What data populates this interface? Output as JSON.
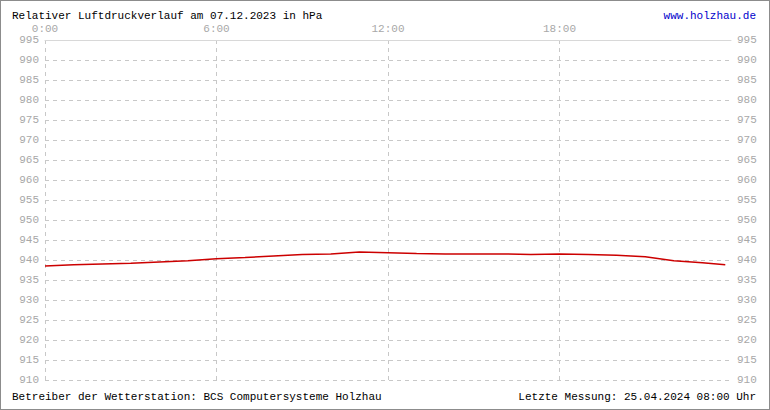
{
  "chart_data": {
    "type": "line",
    "title": "Relativer Luftdruckverlauf am 07.12.2023 in hPa",
    "annotations": [
      "www.holzhau.de",
      "Betreiber der Wetterstation: BCS Computersysteme Holzhau",
      "Letzte Messung: 25.04.2024 08:00 Uhr"
    ],
    "x": [
      0,
      1,
      2,
      3,
      4,
      5,
      6,
      7,
      8,
      9,
      10,
      11,
      12,
      13,
      14,
      15,
      16,
      17,
      18,
      19,
      20,
      21,
      22,
      23,
      23.8
    ],
    "values": [
      938.5,
      938.8,
      939.0,
      939.2,
      939.5,
      939.8,
      940.3,
      940.6,
      941.0,
      941.4,
      941.5,
      942.0,
      941.8,
      941.6,
      941.5,
      941.5,
      941.5,
      941.4,
      941.5,
      941.4,
      941.2,
      940.8,
      939.8,
      939.3,
      938.8
    ],
    "color": "#cc0000",
    "xlim": [
      0,
      24
    ],
    "xticks": [
      {
        "value": 0,
        "label": "0:00"
      },
      {
        "value": 6,
        "label": "6:00"
      },
      {
        "value": 12,
        "label": "12:00"
      },
      {
        "value": 18,
        "label": "18:00"
      }
    ],
    "ylim": [
      910,
      995
    ],
    "yticks": [
      910,
      915,
      920,
      925,
      930,
      935,
      940,
      945,
      950,
      955,
      960,
      965,
      970,
      975,
      980,
      985,
      990,
      995
    ],
    "grid": true
  }
}
